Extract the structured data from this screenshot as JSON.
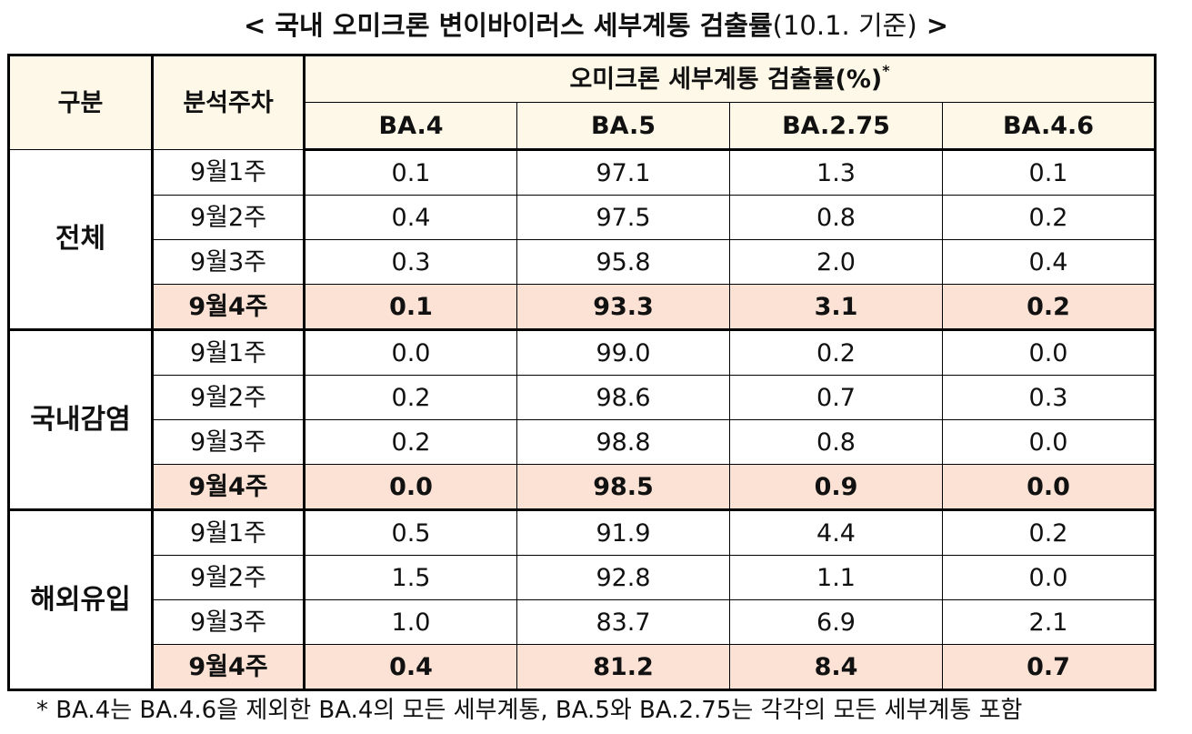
{
  "title": {
    "open": "< ",
    "main": "국내 오미크론 변이바이러스 세부계통 검출률",
    "suffix": "(10.1. 기준)",
    "close": " >"
  },
  "table": {
    "header": {
      "col0": "구분",
      "col1": "분석주차",
      "group": "오미크론 세부계통 검출률(%)",
      "group_mark": "*",
      "variants": [
        "BA.4",
        "BA.5",
        "BA.2.75",
        "BA.4.6"
      ]
    },
    "groups": [
      {
        "name": "전체",
        "rows": [
          {
            "week": "9월1주",
            "values": [
              "0.1",
              "97.1",
              "1.3",
              "0.1"
            ]
          },
          {
            "week": "9월2주",
            "values": [
              "0.4",
              "97.5",
              "0.8",
              "0.2"
            ]
          },
          {
            "week": "9월3주",
            "values": [
              "0.3",
              "95.8",
              "2.0",
              "0.4"
            ]
          },
          {
            "week": "9월4주",
            "values": [
              "0.1",
              "93.3",
              "3.1",
              "0.2"
            ]
          }
        ]
      },
      {
        "name": "국내감염",
        "rows": [
          {
            "week": "9월1주",
            "values": [
              "0.0",
              "99.0",
              "0.2",
              "0.0"
            ]
          },
          {
            "week": "9월2주",
            "values": [
              "0.2",
              "98.6",
              "0.7",
              "0.3"
            ]
          },
          {
            "week": "9월3주",
            "values": [
              "0.2",
              "98.8",
              "0.8",
              "0.0"
            ]
          },
          {
            "week": "9월4주",
            "values": [
              "0.0",
              "98.5",
              "0.9",
              "0.0"
            ]
          }
        ]
      },
      {
        "name": "해외유입",
        "rows": [
          {
            "week": "9월1주",
            "values": [
              "0.5",
              "91.9",
              "4.4",
              "0.2"
            ]
          },
          {
            "week": "9월2주",
            "values": [
              "1.5",
              "92.8",
              "1.1",
              "0.0"
            ]
          },
          {
            "week": "9월3주",
            "values": [
              "1.0",
              "83.7",
              "6.9",
              "2.1"
            ]
          },
          {
            "week": "9월4주",
            "values": [
              "0.4",
              "81.2",
              "8.4",
              "0.7"
            ]
          }
        ]
      }
    ]
  },
  "footnote": "* BA.4는 BA.4.6을 제외한 BA.4의 모든 세부계통, BA.5와 BA.2.75는 각각의 모든 세부계통 포함",
  "colors": {
    "header_bg": "#fdf8e7",
    "highlight_row_bg": "#fbe2d4",
    "border": "#000000"
  }
}
